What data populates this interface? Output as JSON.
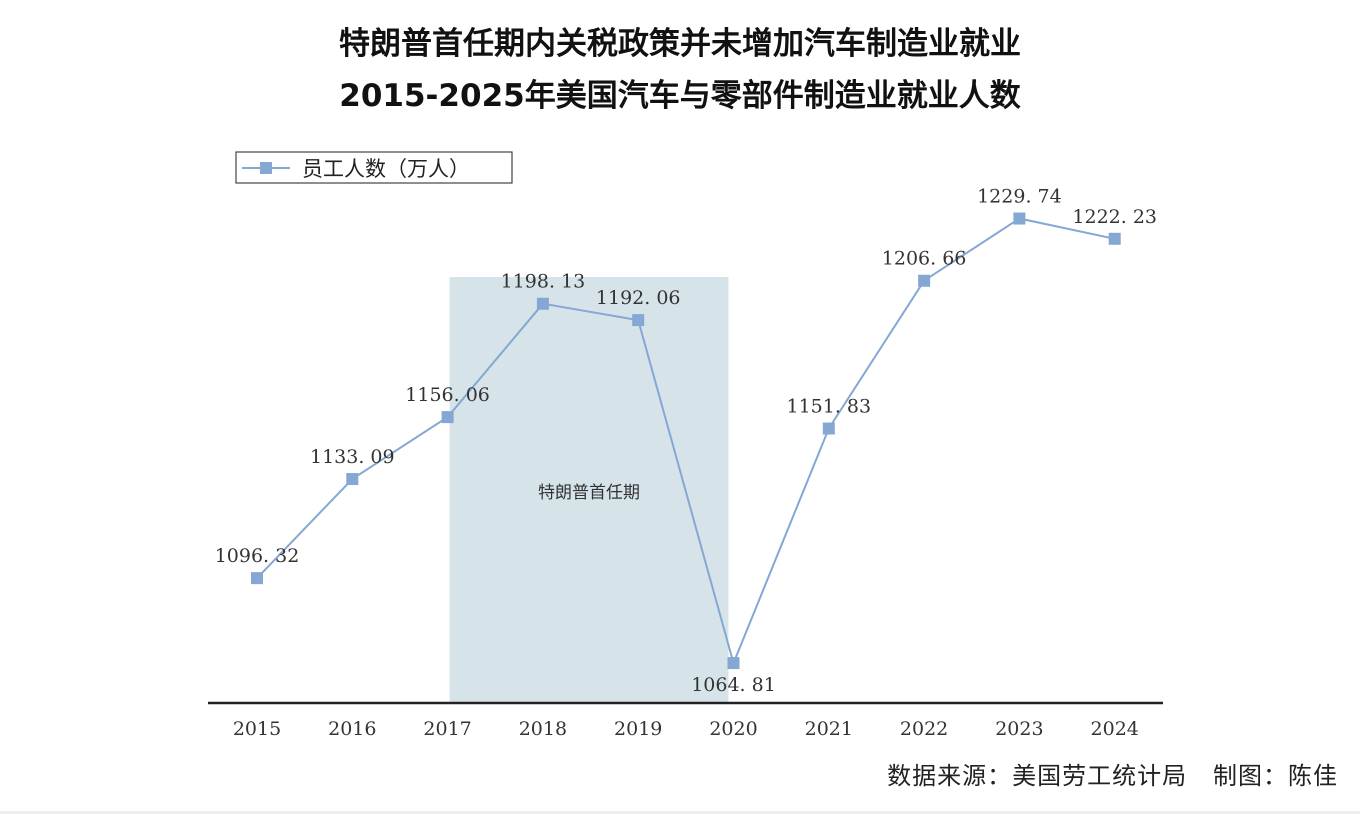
{
  "chart_data": {
    "type": "line",
    "title": "特朗普首任期内关税政策并未增加汽车制造业就业",
    "subtitle": "2015-2025年美国汽车与零部件制造业就业人数",
    "xlabel": "",
    "ylabel": "",
    "categories": [
      "2015",
      "2016",
      "2017",
      "2018",
      "2019",
      "2020",
      "2021",
      "2022",
      "2023",
      "2024"
    ],
    "series": [
      {
        "name": "员工人数（万人）",
        "values": [
          1096.32,
          1133.09,
          1156.06,
          1198.13,
          1192.06,
          1064.81,
          1151.83,
          1206.66,
          1229.74,
          1222.23
        ],
        "labels": [
          "1096. 32",
          "1133. 09",
          "1156. 06",
          "1198. 13",
          "1192. 06",
          "1064. 81",
          "1151. 83",
          "1206. 66",
          "1229. 74",
          "1222. 23"
        ],
        "color": "#84a7d3"
      }
    ],
    "ylim": [
      1050,
      1265
    ],
    "grid": false,
    "legend_position": "top-left",
    "shaded_region": {
      "label": "特朗普首任期",
      "from_category": "2017",
      "to_category": "2020",
      "color": "#d6e4ea"
    },
    "axis_color": "#222222"
  },
  "footer": {
    "source": "数据来源：美国劳工统计局",
    "credit": "制图：陈佳"
  }
}
